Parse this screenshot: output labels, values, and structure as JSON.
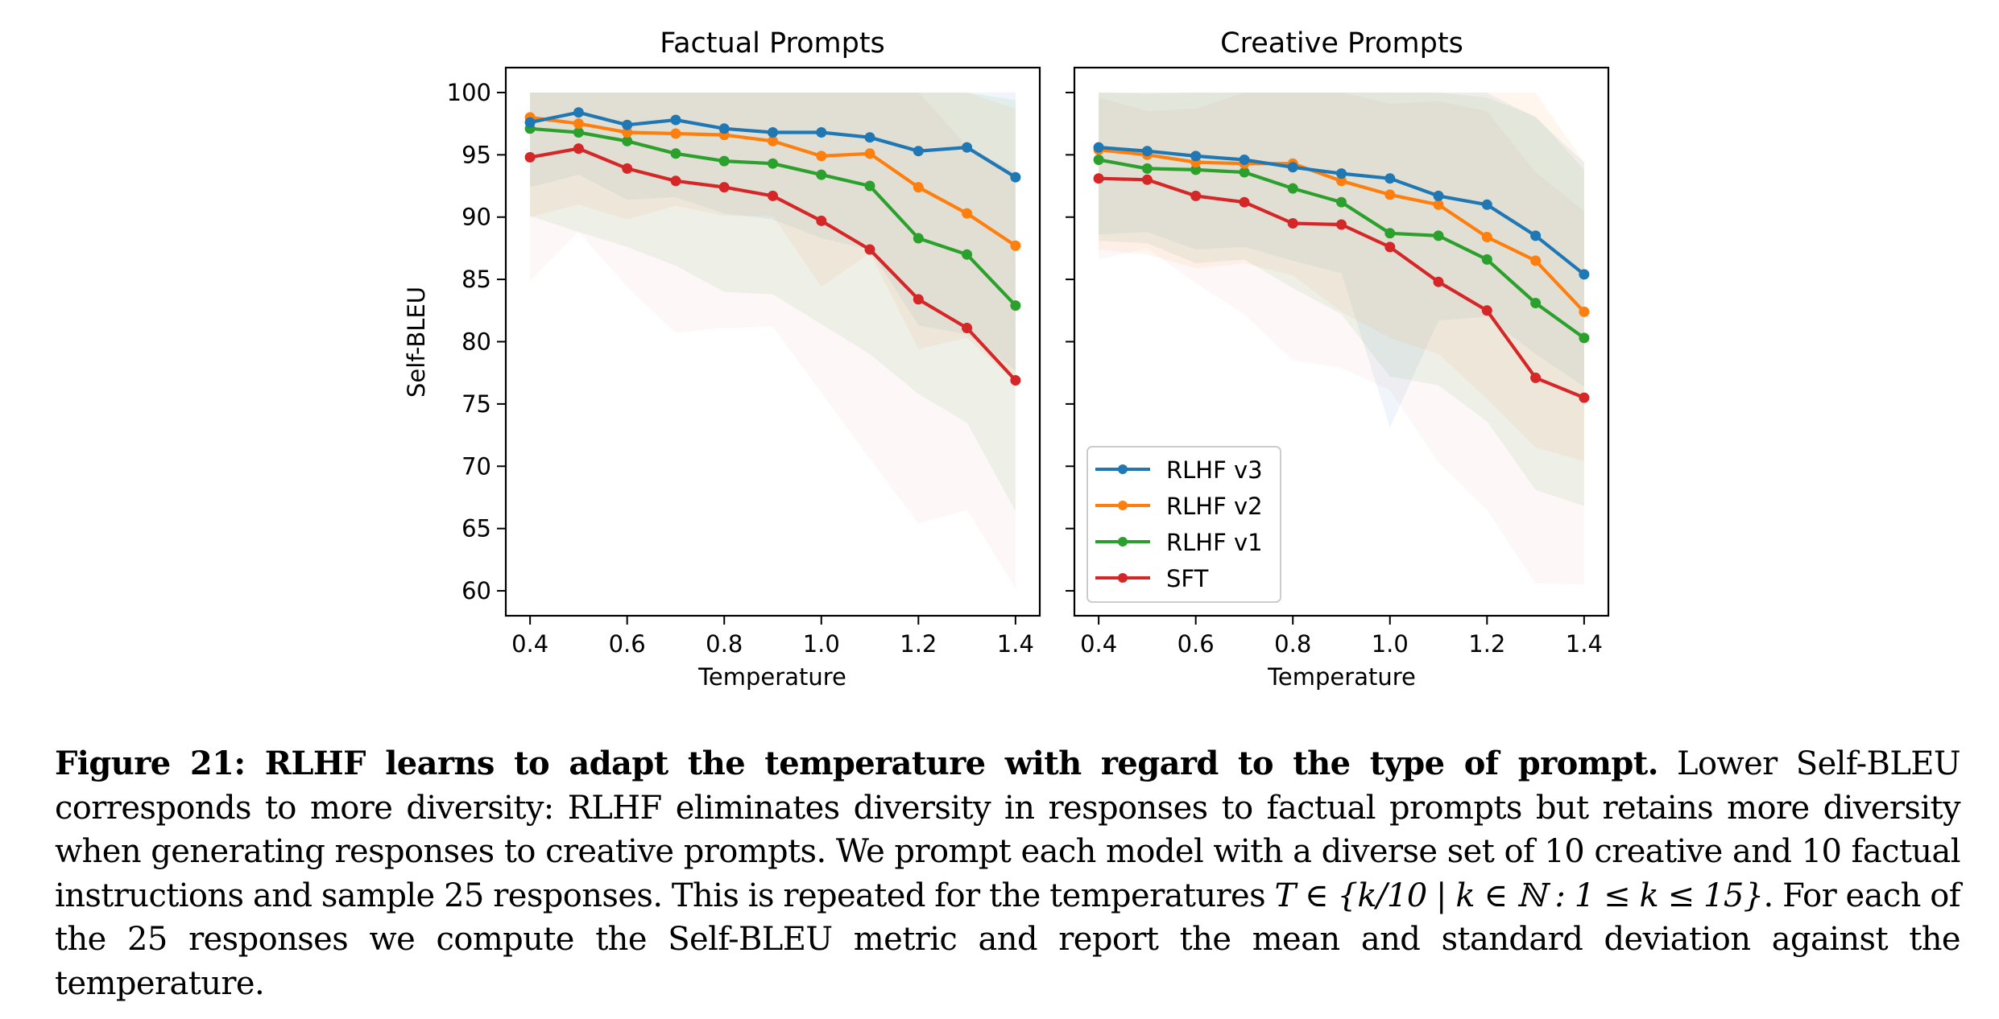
{
  "chart_data": [
    {
      "type": "line",
      "title": "Factual Prompts",
      "xlabel": "Temperature",
      "ylabel": "Self-BLEU",
      "xlim": [
        0.35,
        1.45
      ],
      "ylim": [
        58,
        102
      ],
      "xticks": [
        0.4,
        0.6,
        0.8,
        1.0,
        1.2,
        1.4
      ],
      "xtick_labels": [
        "0.4",
        "0.6",
        "0.8",
        "1.0",
        "1.2",
        "1.4"
      ],
      "yticks": [
        60,
        65,
        70,
        75,
        80,
        85,
        90,
        95,
        100
      ],
      "ytick_labels": [
        "60",
        "65",
        "70",
        "75",
        "80",
        "85",
        "90",
        "95",
        "100"
      ],
      "show_ytick_labels": true,
      "grid": false,
      "band": "mean ± standard deviation (clipped at 100)",
      "x": [
        0.4,
        0.5,
        0.6,
        0.7,
        0.8,
        0.9,
        1.0,
        1.1,
        1.2,
        1.3,
        1.4
      ],
      "series": [
        {
          "name": "RLHF v3",
          "color": "#1f77b4",
          "values": [
            97.6,
            98.4,
            97.4,
            97.8,
            97.1,
            96.8,
            96.8,
            96.4,
            95.3,
            95.6,
            93.2
          ],
          "std": [
            5.2,
            5.0,
            6.0,
            6.2,
            6.8,
            7.0,
            8.5,
            9.0,
            14.0,
            15.0,
            15.5
          ]
        },
        {
          "name": "RLHF v2",
          "color": "#ff7f0e",
          "values": [
            98.0,
            97.5,
            96.8,
            96.7,
            96.6,
            96.1,
            94.9,
            95.1,
            92.4,
            90.3,
            87.7
          ],
          "std": [
            8.0,
            6.5,
            7.0,
            5.8,
            6.5,
            6.0,
            10.5,
            8.0,
            13.0,
            10.0,
            11.0
          ]
        },
        {
          "name": "RLHF v1",
          "color": "#2ca02c",
          "values": [
            97.1,
            96.8,
            96.1,
            95.1,
            94.5,
            94.3,
            93.4,
            92.5,
            88.3,
            87.0,
            82.9
          ],
          "std": [
            7.0,
            8.0,
            8.5,
            9.0,
            10.5,
            10.5,
            12.0,
            13.5,
            12.5,
            13.5,
            16.5
          ]
        },
        {
          "name": "SFT",
          "color": "#d62728",
          "values": [
            94.8,
            95.5,
            93.9,
            92.9,
            92.4,
            91.7,
            89.7,
            87.4,
            83.4,
            81.1,
            76.9
          ],
          "std": [
            9.9,
            6.7,
            9.5,
            12.2,
            11.3,
            10.5,
            13.8,
            16.8,
            18.0,
            14.6,
            16.7
          ]
        }
      ]
    },
    {
      "type": "line",
      "title": "Creative Prompts",
      "xlabel": "Temperature",
      "ylabel": "",
      "xlim": [
        0.35,
        1.45
      ],
      "ylim": [
        58,
        102
      ],
      "xticks": [
        0.4,
        0.6,
        0.8,
        1.0,
        1.2,
        1.4
      ],
      "xtick_labels": [
        "0.4",
        "0.6",
        "0.8",
        "1.0",
        "1.2",
        "1.4"
      ],
      "yticks": [
        60,
        65,
        70,
        75,
        80,
        85,
        90,
        95,
        100
      ],
      "show_ytick_labels": false,
      "grid": false,
      "legend_position": "lower-left",
      "x": [
        0.4,
        0.5,
        0.6,
        0.7,
        0.8,
        0.9,
        1.0,
        1.1,
        1.2,
        1.3,
        1.4
      ],
      "series": [
        {
          "name": "RLHF v3",
          "color": "#1f77b4",
          "values": [
            95.6,
            95.3,
            94.9,
            94.6,
            94.0,
            93.5,
            93.1,
            91.7,
            91.0,
            88.5,
            85.4
          ],
          "std": [
            7.0,
            6.5,
            7.5,
            7.0,
            7.5,
            8.0,
            20.0,
            10.0,
            9.0,
            9.5,
            9.0
          ]
        },
        {
          "name": "RLHF v2",
          "color": "#ff7f0e",
          "values": [
            95.4,
            95.0,
            94.4,
            94.3,
            94.3,
            92.9,
            91.8,
            91.0,
            88.4,
            86.5,
            82.4
          ],
          "std": [
            8.0,
            8.0,
            8.5,
            8.0,
            9.0,
            10.5,
            11.5,
            12.0,
            13.0,
            15.0,
            12.0
          ]
        },
        {
          "name": "RLHF v1",
          "color": "#2ca02c",
          "values": [
            94.6,
            93.9,
            93.8,
            93.6,
            92.3,
            91.2,
            88.7,
            88.5,
            86.6,
            83.1,
            80.3
          ],
          "std": [
            6.5,
            6.0,
            7.5,
            7.0,
            8.0,
            9.0,
            11.5,
            12.0,
            13.0,
            15.0,
            13.5
          ]
        },
        {
          "name": "SFT",
          "color": "#d62728",
          "values": [
            93.1,
            93.0,
            91.7,
            91.2,
            89.5,
            89.4,
            87.6,
            84.8,
            82.5,
            77.1,
            75.5
          ],
          "std": [
            6.5,
            5.5,
            7.0,
            9.0,
            11.0,
            11.5,
            11.5,
            14.5,
            16.0,
            16.5,
            15.0
          ]
        }
      ]
    }
  ],
  "legend": {
    "items": [
      {
        "label": "RLHF v3",
        "color": "#1f77b4"
      },
      {
        "label": "RLHF v2",
        "color": "#ff7f0e"
      },
      {
        "label": "RLHF v1",
        "color": "#2ca02c"
      },
      {
        "label": "SFT",
        "color": "#d62728"
      }
    ]
  },
  "caption": {
    "lead": "Figure 21: RLHF learns to adapt the temperature with regard to the type of prompt.",
    "body_1": " Lower Self-BLEU corresponds to more diversity: RLHF eliminates diversity in responses to factual prompts but retains more diversity when generating responses to creative prompts.  We prompt each model with a diverse set of 10 creative and 10 factual instructions and sample 25 responses.  This is repeated for the temperatures ",
    "math": "T ∈ {k/10 | k ∈ ℕ : 1 ≤ k ≤ 15}",
    "body_2": ". For each of the 25 responses we compute the Self-BLEU metric and report the mean and standard deviation against the temperature."
  }
}
